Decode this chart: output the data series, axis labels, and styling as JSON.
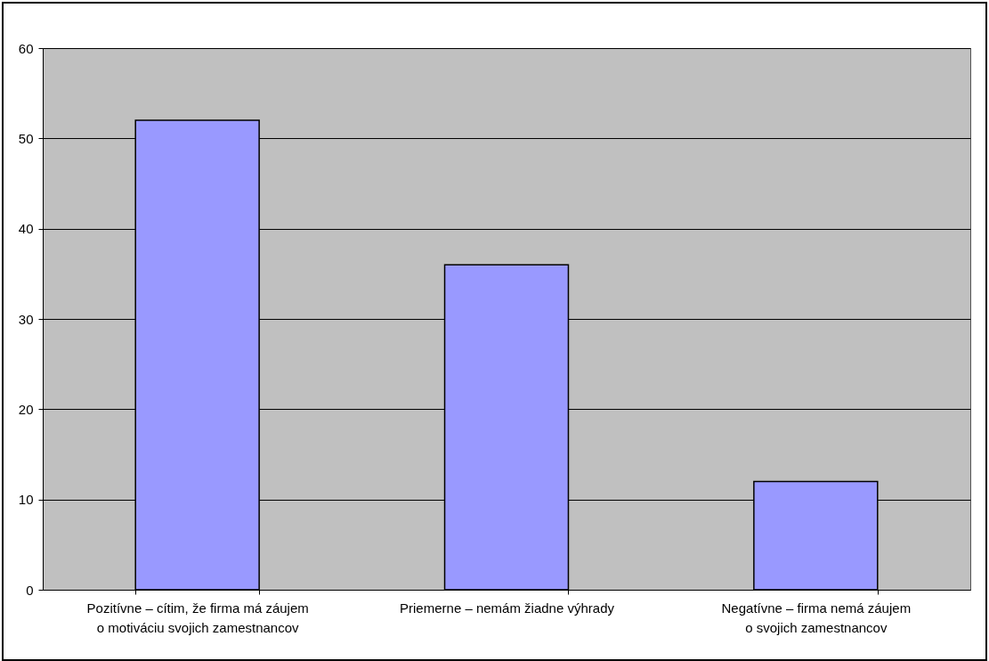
{
  "chart_data": {
    "type": "bar",
    "categories": [
      "Pozitívne – cítim, že firma má záujem o motiváciu svojich zamestnancov",
      "Priemerne – nemám žiadne výhrady",
      "Negatívne – firma nemá záujem o svojich zamestnancov"
    ],
    "values": [
      52,
      36,
      12
    ],
    "color": "#9999ff",
    "ylim": [
      0,
      60
    ],
    "yticks": [
      0,
      10,
      20,
      30,
      40,
      50,
      60
    ],
    "grid": "y"
  }
}
